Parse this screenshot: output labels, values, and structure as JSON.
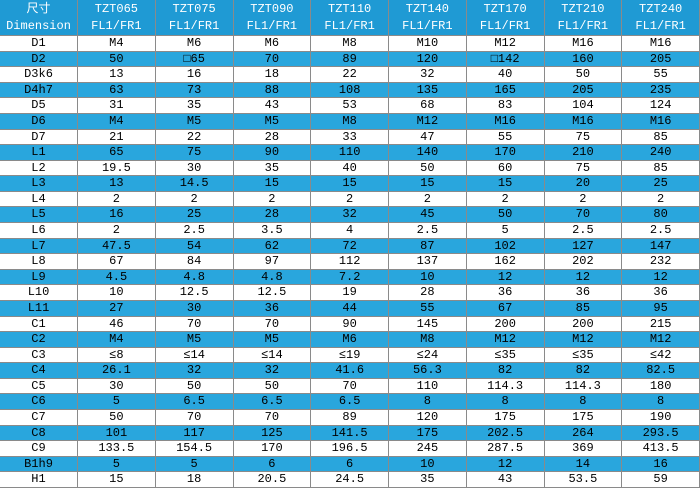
{
  "table": {
    "header": [
      {
        "line1": "尺寸",
        "line2": "Dimension"
      },
      {
        "line1": "TZT065",
        "line2": "FL1/FR1"
      },
      {
        "line1": "TZT075",
        "line2": "FL1/FR1"
      },
      {
        "line1": "TZT090",
        "line2": "FL1/FR1"
      },
      {
        "line1": "TZT110",
        "line2": "FL1/FR1"
      },
      {
        "line1": "TZT140",
        "line2": "FL1/FR1"
      },
      {
        "line1": "TZT170",
        "line2": "FL1/FR1"
      },
      {
        "line1": "TZT210",
        "line2": "FL1/FR1"
      },
      {
        "line1": "TZT240",
        "line2": "FL1/FR1"
      }
    ],
    "rows": [
      [
        "D1",
        "M4",
        "M6",
        "M6",
        "M8",
        "M10",
        "M12",
        "M16",
        "M16"
      ],
      [
        "D2",
        "50",
        "□65",
        "70",
        "89",
        "120",
        "□142",
        "160",
        "205"
      ],
      [
        "D3k6",
        "13",
        "16",
        "18",
        "22",
        "32",
        "40",
        "50",
        "55"
      ],
      [
        "D4h7",
        "63",
        "73",
        "88",
        "108",
        "135",
        "165",
        "205",
        "235"
      ],
      [
        "D5",
        "31",
        "35",
        "43",
        "53",
        "68",
        "83",
        "104",
        "124"
      ],
      [
        "D6",
        "M4",
        "M5",
        "M5",
        "M8",
        "M12",
        "M16",
        "M16",
        "M16"
      ],
      [
        "D7",
        "21",
        "22",
        "28",
        "33",
        "47",
        "55",
        "75",
        "85"
      ],
      [
        "L1",
        "65",
        "75",
        "90",
        "110",
        "140",
        "170",
        "210",
        "240"
      ],
      [
        "L2",
        "19.5",
        "30",
        "35",
        "40",
        "50",
        "60",
        "75",
        "85"
      ],
      [
        "L3",
        "13",
        "14.5",
        "15",
        "15",
        "15",
        "15",
        "20",
        "25"
      ],
      [
        "L4",
        "2",
        "2",
        "2",
        "2",
        "2",
        "2",
        "2",
        "2"
      ],
      [
        "L5",
        "16",
        "25",
        "28",
        "32",
        "45",
        "50",
        "70",
        "80"
      ],
      [
        "L6",
        "2",
        "2.5",
        "3.5",
        "4",
        "2.5",
        "5",
        "2.5",
        "2.5"
      ],
      [
        "L7",
        "47.5",
        "54",
        "62",
        "72",
        "87",
        "102",
        "127",
        "147"
      ],
      [
        "L8",
        "67",
        "84",
        "97",
        "112",
        "137",
        "162",
        "202",
        "232"
      ],
      [
        "L9",
        "4.5",
        "4.8",
        "4.8",
        "7.2",
        "10",
        "12",
        "12",
        "12"
      ],
      [
        "L10",
        "10",
        "12.5",
        "12.5",
        "19",
        "28",
        "36",
        "36",
        "36"
      ],
      [
        "L11",
        "27",
        "30",
        "36",
        "44",
        "55",
        "67",
        "85",
        "95"
      ],
      [
        "C1",
        "46",
        "70",
        "70",
        "90",
        "145",
        "200",
        "200",
        "215"
      ],
      [
        "C2",
        "M4",
        "M5",
        "M5",
        "M6",
        "M8",
        "M12",
        "M12",
        "M12"
      ],
      [
        "C3",
        "≤8",
        "≤14",
        "≤14",
        "≤19",
        "≤24",
        "≤35",
        "≤35",
        "≤42"
      ],
      [
        "C4",
        "26.1",
        "32",
        "32",
        "41.6",
        "56.3",
        "82",
        "82",
        "82.5"
      ],
      [
        "C5",
        "30",
        "50",
        "50",
        "70",
        "110",
        "114.3",
        "114.3",
        "180"
      ],
      [
        "C6",
        "5",
        "6.5",
        "6.5",
        "6.5",
        "8",
        "8",
        "8",
        "8"
      ],
      [
        "C7",
        "50",
        "70",
        "70",
        "89",
        "120",
        "175",
        "175",
        "190"
      ],
      [
        "C8",
        "101",
        "117",
        "125",
        "141.5",
        "175",
        "202.5",
        "264",
        "293.5"
      ],
      [
        "C9",
        "133.5",
        "154.5",
        "170",
        "196.5",
        "245",
        "287.5",
        "369",
        "413.5"
      ],
      [
        "B1h9",
        "5",
        "5",
        "6",
        "6",
        "10",
        "12",
        "14",
        "16"
      ],
      [
        "H1",
        "15",
        "18",
        "20.5",
        "24.5",
        "35",
        "43",
        "53.5",
        "59"
      ]
    ]
  }
}
